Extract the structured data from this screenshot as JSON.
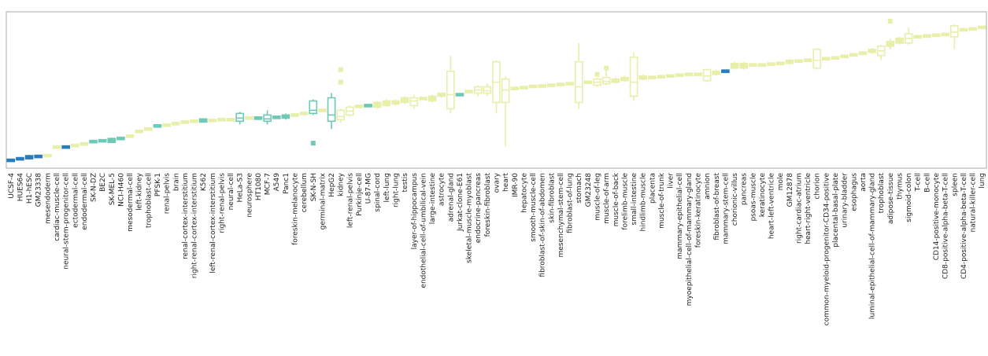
{
  "chart_data": {
    "type": "box",
    "title": "",
    "xlabel": "",
    "ylabel": "",
    "ylim": [
      0,
      100
    ],
    "grid": false,
    "legend": "none",
    "colors": {
      "dark_blue": "#2a7db8",
      "teal": "#6ec9b6",
      "pale_yellow": "#e8efaa",
      "frame": "#aaaaaa"
    },
    "categories": [
      "UCSF-4",
      "HUES64",
      "H1-hESC",
      "GM23338",
      "mesendoderm",
      "cardiac-muscle-cell",
      "neural-stem-progenitor-cell",
      "ectodermal-cell",
      "endodermal-cell",
      "SK-N-DZ",
      "BE2C",
      "SK-MEL-5",
      "NCI-H460",
      "mesodermal-cell",
      "left-kidney",
      "trophoblast-cell",
      "PFSK-1",
      "renal-pelvis",
      "brain",
      "renal-cortex-interstitium",
      "right-renal-cortex-interstitium",
      "K562",
      "left-renal-cortex-interstitium",
      "right-renal-pelvis",
      "neural-cell",
      "HeLa-S3",
      "neurosphere",
      "HT1080",
      "MCF-7",
      "A549",
      "Panc1",
      "foreskin-melanocyte",
      "cerebellum",
      "SK-N-SH",
      "germinal-matrix",
      "HepG2",
      "kidney",
      "left-renal-pelvis",
      "Purkinje-cell",
      "U-87-MG",
      "spinal-cord",
      "left-lung",
      "right-lung",
      "testis",
      "layer-of-hippocampus",
      "endothelial-cell-of-umbilical-vein",
      "large-intestine",
      "astrocyte",
      "adrenal-gland",
      "Jurkat-clone-E61",
      "skeletal-muscle-myoblast",
      "endocrine-pancreas",
      "foreskin-fibroblast",
      "ovary",
      "heart",
      "IMR-90",
      "hepatocyte",
      "smooth-muscle-cell",
      "fibroblast-of-skin-of-abdomen",
      "skin-fibroblast",
      "mesenchymal-stem-cell",
      "fibroblast-of-lung",
      "stomach",
      "GM23248",
      "muscle-of-leg",
      "muscle-of-arm",
      "muscle-of-back",
      "forelimb-muscle",
      "small-intestine",
      "hindlimb-muscle",
      "placenta",
      "muscle-of-trunk",
      "liver",
      "mammary-epithelial-cell",
      "myoepithelial-cell-of-mammary-gland",
      "foreskin-keratinocyte",
      "amnion",
      "fibroblast-of-breast",
      "mammary-stem-cell",
      "chorionic-villus",
      "pancreas",
      "psoas-muscle",
      "keratinocyte",
      "heart-left-ventricle",
      "mole",
      "GM12878",
      "right-cardiac-atrium",
      "heart-right-ventricle",
      "chorion",
      "common-myeloid-progenitor-CD34-positive",
      "placental-basal-plate",
      "urinary-bladder",
      "esophagus",
      "aorta",
      "luminal-epithelial-cell-of-mammary-gland",
      "trophoblast",
      "adipose-tissue",
      "thymus",
      "sigmoid-colon",
      "T-cell",
      "B-cell",
      "CD14-positive-monocyte",
      "CD8-positive-alpha-beta-T-cell",
      "spleen",
      "CD4-positive-alpha-beta-T-cell",
      "natural-killer-cell",
      "lung"
    ],
    "boxes": [
      {
        "q1": 4.5,
        "med": 5,
        "q3": 5.5,
        "lo": 4.5,
        "hi": 5.5,
        "color": "dark_blue"
      },
      {
        "q1": 5.5,
        "med": 6,
        "q3": 6.5,
        "lo": 5.5,
        "hi": 6.5,
        "color": "dark_blue"
      },
      {
        "q1": 6,
        "med": 7,
        "q3": 8,
        "lo": 5.5,
        "hi": 8.5,
        "color": "dark_blue"
      },
      {
        "q1": 7,
        "med": 7.5,
        "q3": 8,
        "lo": 7,
        "hi": 8,
        "color": "dark_blue"
      },
      {
        "q1": 7.5,
        "med": 8,
        "q3": 8.5,
        "lo": 7.5,
        "hi": 8.5,
        "color": "pale_yellow"
      },
      {
        "q1": 13,
        "med": 13.5,
        "q3": 14,
        "lo": 13,
        "hi": 14,
        "color": "pale_yellow"
      },
      {
        "q1": 13,
        "med": 13.5,
        "q3": 14,
        "lo": 13,
        "hi": 14,
        "color": "dark_blue"
      },
      {
        "q1": 14,
        "med": 14.5,
        "q3": 15,
        "lo": 14,
        "hi": 15,
        "color": "pale_yellow"
      },
      {
        "q1": 15,
        "med": 15.5,
        "q3": 16,
        "lo": 15,
        "hi": 16,
        "color": "pale_yellow"
      },
      {
        "q1": 16.5,
        "med": 17,
        "q3": 17.5,
        "lo": 16.5,
        "hi": 17.5,
        "color": "teal"
      },
      {
        "q1": 17,
        "med": 17.5,
        "q3": 18,
        "lo": 17,
        "hi": 18,
        "color": "teal"
      },
      {
        "q1": 16.5,
        "med": 17.5,
        "q3": 19,
        "lo": 16,
        "hi": 19.5,
        "color": "teal"
      },
      {
        "q1": 18.5,
        "med": 19,
        "q3": 19.5,
        "lo": 18,
        "hi": 20,
        "color": "teal"
      },
      {
        "q1": 20,
        "med": 20.5,
        "q3": 21,
        "lo": 20,
        "hi": 21,
        "color": "pale_yellow"
      },
      {
        "q1": 23,
        "med": 23.5,
        "q3": 24,
        "lo": 23,
        "hi": 24,
        "color": "pale_yellow"
      },
      {
        "q1": 24.5,
        "med": 25,
        "q3": 25.5,
        "lo": 24.5,
        "hi": 25.5,
        "color": "pale_yellow"
      },
      {
        "q1": 26.5,
        "med": 27,
        "q3": 27.5,
        "lo": 26.5,
        "hi": 27.5,
        "color": "teal"
      },
      {
        "q1": 27,
        "med": 27.5,
        "q3": 28,
        "lo": 27,
        "hi": 28,
        "color": "pale_yellow"
      },
      {
        "q1": 28,
        "med": 28.5,
        "q3": 29,
        "lo": 28,
        "hi": 29,
        "color": "pale_yellow"
      },
      {
        "q1": 29,
        "med": 29.5,
        "q3": 30,
        "lo": 29,
        "hi": 30,
        "color": "pale_yellow"
      },
      {
        "q1": 29.5,
        "med": 30,
        "q3": 30.5,
        "lo": 29.5,
        "hi": 30.5,
        "color": "pale_yellow"
      },
      {
        "q1": 29.5,
        "med": 30.5,
        "q3": 31.5,
        "lo": 29,
        "hi": 32,
        "color": "teal"
      },
      {
        "q1": 30,
        "med": 30.5,
        "q3": 31,
        "lo": 30,
        "hi": 31,
        "color": "pale_yellow"
      },
      {
        "q1": 30.5,
        "med": 31,
        "q3": 31.5,
        "lo": 30.5,
        "hi": 31.5,
        "color": "pale_yellow"
      },
      {
        "q1": 30.5,
        "med": 31,
        "q3": 31.5,
        "lo": 30.5,
        "hi": 31.5,
        "color": "pale_yellow"
      },
      {
        "q1": 30,
        "med": 32,
        "q3": 35,
        "lo": 28,
        "hi": 36,
        "color": "teal"
      },
      {
        "q1": 31.5,
        "med": 32,
        "q3": 32.5,
        "lo": 31.5,
        "hi": 32.5,
        "color": "pale_yellow"
      },
      {
        "q1": 31.5,
        "med": 32,
        "q3": 32.5,
        "lo": 31.5,
        "hi": 32.5,
        "color": "teal"
      },
      {
        "q1": 30,
        "med": 31.5,
        "q3": 34,
        "lo": 28,
        "hi": 37,
        "color": "teal"
      },
      {
        "q1": 32,
        "med": 32.5,
        "q3": 33,
        "lo": 32,
        "hi": 33,
        "color": "teal"
      },
      {
        "q1": 32,
        "med": 33,
        "q3": 34,
        "lo": 31,
        "hi": 35,
        "color": "teal"
      },
      {
        "q1": 33.5,
        "med": 34,
        "q3": 34.5,
        "lo": 33.5,
        "hi": 34.5,
        "color": "pale_yellow"
      },
      {
        "q1": 34.5,
        "med": 35,
        "q3": 35.5,
        "lo": 34.5,
        "hi": 35.5,
        "color": "pale_yellow"
      },
      {
        "q1": 35,
        "med": 37,
        "q3": 43,
        "lo": 34,
        "hi": 44,
        "color": "teal",
        "outliers": [
          16
        ]
      },
      {
        "q1": 36.5,
        "med": 37,
        "q3": 37.5,
        "lo": 36.5,
        "hi": 37.5,
        "color": "pale_yellow"
      },
      {
        "q1": 30,
        "med": 34,
        "q3": 45,
        "lo": 25,
        "hi": 48,
        "color": "teal"
      },
      {
        "q1": 31,
        "med": 33,
        "q3": 37,
        "lo": 29,
        "hi": 38,
        "color": "pale_yellow",
        "outliers": [
          63,
          55
        ]
      },
      {
        "q1": 34,
        "med": 36.5,
        "q3": 39,
        "lo": 33,
        "hi": 40,
        "color": "pale_yellow"
      },
      {
        "q1": 39,
        "med": 39.5,
        "q3": 40,
        "lo": 39,
        "hi": 40,
        "color": "pale_yellow"
      },
      {
        "q1": 39.5,
        "med": 40,
        "q3": 40.5,
        "lo": 39.5,
        "hi": 40.5,
        "color": "teal"
      },
      {
        "q1": 39,
        "med": 41,
        "q3": 42,
        "lo": 38,
        "hi": 43,
        "color": "pale_yellow"
      },
      {
        "q1": 40,
        "med": 41.5,
        "q3": 43,
        "lo": 39,
        "hi": 44,
        "color": "pale_yellow"
      },
      {
        "q1": 41,
        "med": 42,
        "q3": 43,
        "lo": 40,
        "hi": 44,
        "color": "pale_yellow"
      },
      {
        "q1": 42,
        "med": 43,
        "q3": 45,
        "lo": 41,
        "hi": 46,
        "color": "pale_yellow"
      },
      {
        "q1": 40,
        "med": 43,
        "q3": 45,
        "lo": 38,
        "hi": 47,
        "color": "pale_yellow"
      },
      {
        "q1": 44,
        "med": 44.5,
        "q3": 45,
        "lo": 44,
        "hi": 45,
        "color": "pale_yellow"
      },
      {
        "q1": 43,
        "med": 45,
        "q3": 46,
        "lo": 42,
        "hi": 47,
        "color": "pale_yellow"
      },
      {
        "q1": 46,
        "med": 47,
        "q3": 48,
        "lo": 45,
        "hi": 48,
        "color": "pale_yellow"
      },
      {
        "q1": 38,
        "med": 47,
        "q3": 62,
        "lo": 35,
        "hi": 72,
        "color": "pale_yellow"
      },
      {
        "q1": 46.5,
        "med": 47,
        "q3": 47.5,
        "lo": 46.5,
        "hi": 47.5,
        "color": "teal"
      },
      {
        "q1": 48.5,
        "med": 49,
        "q3": 49.5,
        "lo": 48.5,
        "hi": 49.5,
        "color": "pale_yellow"
      },
      {
        "q1": 48,
        "med": 50,
        "q3": 52,
        "lo": 46,
        "hi": 53,
        "color": "pale_yellow"
      },
      {
        "q1": 48,
        "med": 49.5,
        "q3": 52,
        "lo": 46,
        "hi": 54,
        "color": "pale_yellow"
      },
      {
        "q1": 42,
        "med": 55,
        "q3": 68,
        "lo": 35,
        "hi": 69,
        "color": "pale_yellow"
      },
      {
        "q1": 42,
        "med": 50,
        "q3": 57,
        "lo": 14,
        "hi": 59,
        "color": "pale_yellow"
      },
      {
        "q1": 50.5,
        "med": 51,
        "q3": 51.5,
        "lo": 50.5,
        "hi": 51.5,
        "color": "pale_yellow"
      },
      {
        "q1": 51,
        "med": 51.5,
        "q3": 52,
        "lo": 51,
        "hi": 52,
        "color": "pale_yellow"
      },
      {
        "q1": 51.5,
        "med": 52,
        "q3": 53,
        "lo": 51,
        "hi": 53,
        "color": "pale_yellow"
      },
      {
        "q1": 52,
        "med": 52.5,
        "q3": 53,
        "lo": 52,
        "hi": 53,
        "color": "pale_yellow"
      },
      {
        "q1": 52.5,
        "med": 53,
        "q3": 53.5,
        "lo": 52.5,
        "hi": 53.5,
        "color": "pale_yellow"
      },
      {
        "q1": 53,
        "med": 53.5,
        "q3": 54,
        "lo": 53,
        "hi": 54,
        "color": "pale_yellow"
      },
      {
        "q1": 53.5,
        "med": 54,
        "q3": 54.5,
        "lo": 53.5,
        "hi": 54.5,
        "color": "pale_yellow"
      },
      {
        "q1": 42,
        "med": 52,
        "q3": 68,
        "lo": 38,
        "hi": 80,
        "color": "pale_yellow"
      },
      {
        "q1": 54.5,
        "med": 55,
        "q3": 55.5,
        "lo": 54.5,
        "hi": 55.5,
        "color": "pale_yellow"
      },
      {
        "q1": 53,
        "med": 55,
        "q3": 57,
        "lo": 52,
        "hi": 58,
        "color": "pale_yellow",
        "outliers": [
          60
        ]
      },
      {
        "q1": 54,
        "med": 55.5,
        "q3": 58,
        "lo": 53,
        "hi": 63,
        "color": "pale_yellow",
        "outliers": [
          64
        ]
      },
      {
        "q1": 55,
        "med": 56,
        "q3": 57,
        "lo": 54,
        "hi": 58,
        "color": "pale_yellow"
      },
      {
        "q1": 56,
        "med": 57,
        "q3": 58,
        "lo": 55,
        "hi": 59,
        "color": "pale_yellow"
      },
      {
        "q1": 46,
        "med": 55,
        "q3": 71,
        "lo": 43,
        "hi": 74,
        "color": "pale_yellow"
      },
      {
        "q1": 57,
        "med": 58,
        "q3": 59,
        "lo": 56,
        "hi": 60,
        "color": "pale_yellow"
      },
      {
        "q1": 57.5,
        "med": 58,
        "q3": 58.5,
        "lo": 57.5,
        "hi": 58.5,
        "color": "pale_yellow"
      },
      {
        "q1": 58,
        "med": 58.5,
        "q3": 59,
        "lo": 58,
        "hi": 59,
        "color": "pale_yellow"
      },
      {
        "q1": 58.5,
        "med": 59,
        "q3": 59.5,
        "lo": 58.5,
        "hi": 59.5,
        "color": "pale_yellow"
      },
      {
        "q1": 59,
        "med": 59.5,
        "q3": 60,
        "lo": 59,
        "hi": 60,
        "color": "pale_yellow"
      },
      {
        "q1": 59.5,
        "med": 60,
        "q3": 60.5,
        "lo": 59.5,
        "hi": 60.5,
        "color": "pale_yellow"
      },
      {
        "q1": 59.5,
        "med": 60,
        "q3": 60.5,
        "lo": 59.5,
        "hi": 60.5,
        "color": "pale_yellow"
      },
      {
        "q1": 56,
        "med": 59,
        "q3": 63,
        "lo": 55,
        "hi": 63,
        "color": "pale_yellow"
      },
      {
        "q1": 60,
        "med": 61,
        "q3": 62,
        "lo": 59,
        "hi": 63,
        "color": "pale_yellow"
      },
      {
        "q1": 61.5,
        "med": 62,
        "q3": 62.5,
        "lo": 61.5,
        "hi": 62.5,
        "color": "dark_blue"
      },
      {
        "q1": 64,
        "med": 65,
        "q3": 67,
        "lo": 63,
        "hi": 68,
        "color": "pale_yellow"
      },
      {
        "q1": 64,
        "med": 66,
        "q3": 67,
        "lo": 63,
        "hi": 68,
        "color": "pale_yellow"
      },
      {
        "q1": 65.5,
        "med": 66,
        "q3": 66.5,
        "lo": 65.5,
        "hi": 66.5,
        "color": "pale_yellow"
      },
      {
        "q1": 65.5,
        "med": 66,
        "q3": 66.5,
        "lo": 65.5,
        "hi": 66.5,
        "color": "pale_yellow"
      },
      {
        "q1": 66,
        "med": 66.5,
        "q3": 67,
        "lo": 66,
        "hi": 67,
        "color": "pale_yellow"
      },
      {
        "q1": 66.5,
        "med": 67,
        "q3": 67.5,
        "lo": 66.5,
        "hi": 67.5,
        "color": "pale_yellow"
      },
      {
        "q1": 67,
        "med": 68,
        "q3": 69,
        "lo": 66,
        "hi": 70,
        "color": "pale_yellow"
      },
      {
        "q1": 68,
        "med": 68.5,
        "q3": 69,
        "lo": 68,
        "hi": 69,
        "color": "pale_yellow"
      },
      {
        "q1": 68.5,
        "med": 69,
        "q3": 69.5,
        "lo": 68.5,
        "hi": 69.5,
        "color": "pale_yellow"
      },
      {
        "q1": 64,
        "med": 69,
        "q3": 76,
        "lo": 63,
        "hi": 77,
        "color": "pale_yellow"
      },
      {
        "q1": 69.5,
        "med": 70,
        "q3": 70.5,
        "lo": 69.5,
        "hi": 70.5,
        "color": "pale_yellow"
      },
      {
        "q1": 70,
        "med": 70.5,
        "q3": 71,
        "lo": 70,
        "hi": 71,
        "color": "pale_yellow"
      },
      {
        "q1": 71,
        "med": 71.5,
        "q3": 72,
        "lo": 71,
        "hi": 72,
        "color": "pale_yellow"
      },
      {
        "q1": 72,
        "med": 72.5,
        "q3": 73,
        "lo": 72,
        "hi": 73,
        "color": "pale_yellow"
      },
      {
        "q1": 73,
        "med": 73.5,
        "q3": 74,
        "lo": 73,
        "hi": 74,
        "color": "pale_yellow"
      },
      {
        "q1": 74,
        "med": 75,
        "q3": 76,
        "lo": 73,
        "hi": 77,
        "color": "pale_yellow"
      },
      {
        "q1": 72,
        "med": 75,
        "q3": 78,
        "lo": 69,
        "hi": 79,
        "color": "pale_yellow"
      },
      {
        "q1": 78,
        "med": 79,
        "q3": 81,
        "lo": 76,
        "hi": 83,
        "color": "pale_yellow",
        "outliers": [
          94
        ]
      },
      {
        "q1": 80,
        "med": 81.5,
        "q3": 83,
        "lo": 79,
        "hi": 84,
        "color": "pale_yellow"
      },
      {
        "q1": 80,
        "med": 83,
        "q3": 86,
        "lo": 79,
        "hi": 90,
        "color": "pale_yellow"
      },
      {
        "q1": 83.5,
        "med": 84,
        "q3": 84.5,
        "lo": 83.5,
        "hi": 84.5,
        "color": "pale_yellow"
      },
      {
        "q1": 84,
        "med": 84.5,
        "q3": 85,
        "lo": 84,
        "hi": 85,
        "color": "pale_yellow"
      },
      {
        "q1": 84.5,
        "med": 85,
        "q3": 85.5,
        "lo": 84.5,
        "hi": 85.5,
        "color": "pale_yellow"
      },
      {
        "q1": 85,
        "med": 85.5,
        "q3": 86,
        "lo": 85,
        "hi": 86,
        "color": "pale_yellow"
      },
      {
        "q1": 84,
        "med": 87,
        "q3": 91,
        "lo": 76,
        "hi": 92,
        "color": "pale_yellow"
      },
      {
        "q1": 88,
        "med": 88.5,
        "q3": 89,
        "lo": 88,
        "hi": 89,
        "color": "pale_yellow"
      },
      {
        "q1": 88.5,
        "med": 89,
        "q3": 89.5,
        "lo": 88.5,
        "hi": 89.5,
        "color": "pale_yellow"
      },
      {
        "q1": 89.5,
        "med": 90,
        "q3": 90.5,
        "lo": 89.5,
        "hi": 90.5,
        "color": "pale_yellow"
      }
    ]
  }
}
